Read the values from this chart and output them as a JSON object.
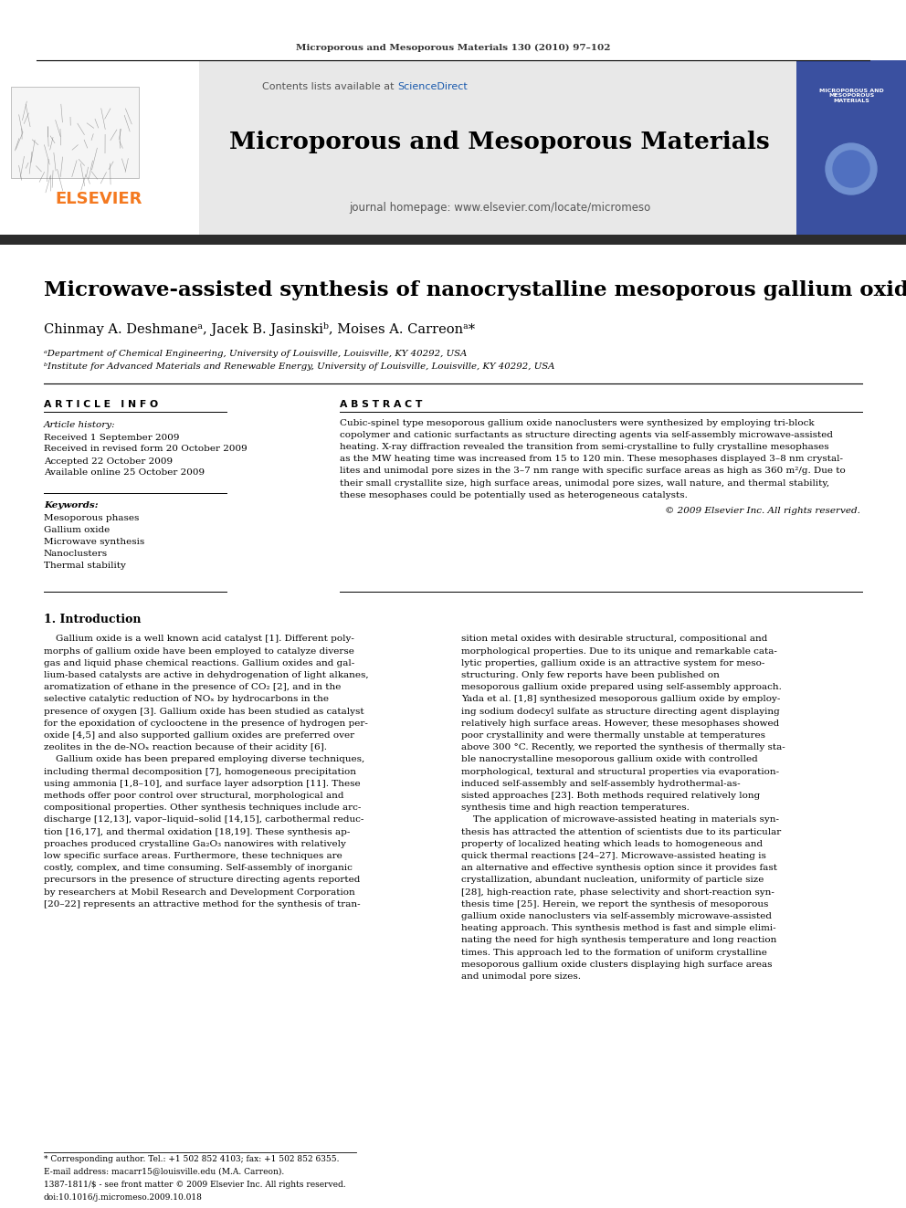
{
  "journal_header": "Microporous and Mesoporous Materials 130 (2010) 97–102",
  "journal_name": "Microporous and Mesoporous Materials",
  "journal_url": "journal homepage: www.elsevier.com/locate/micromeso",
  "paper_title": "Microwave-assisted synthesis of nanocrystalline mesoporous gallium oxide",
  "authors": "Chinmay A. Deshmaneᵃ, Jacek B. Jasinskiᵇ, Moises A. Carreonᵃ*",
  "affil_a": "ᵃDepartment of Chemical Engineering, University of Louisville, Louisville, KY 40292, USA",
  "affil_b": "ᵇInstitute for Advanced Materials and Renewable Energy, University of Louisville, Louisville, KY 40292, USA",
  "article_info_title": "A R T I C L E   I N F O",
  "abstract_title": "A B S T R A C T",
  "article_history_title": "Article history:",
  "received": "Received 1 September 2009",
  "revised": "Received in revised form 20 October 2009",
  "accepted": "Accepted 22 October 2009",
  "available": "Available online 25 October 2009",
  "keywords_title": "Keywords:",
  "keywords": [
    "Mesoporous phases",
    "Gallium oxide",
    "Microwave synthesis",
    "Nanoclusters",
    "Thermal stability"
  ],
  "copyright": "© 2009 Elsevier Inc. All rights reserved.",
  "intro_title": "1. Introduction",
  "footer_corresp": "* Corresponding author. Tel.: +1 502 852 4103; fax: +1 502 852 6355.",
  "footer_email": "E-mail address: macarr15@louisville.edu (M.A. Carreon).",
  "footer_issn": "1387-1811/$ - see front matter © 2009 Elsevier Inc. All rights reserved.",
  "footer_doi": "doi:10.1016/j.micromeso.2009.10.018",
  "header_bg": "#e8e8e8",
  "elsevier_orange": "#f47920",
  "sciencedirect_blue": "#1a5aad",
  "dark_bar_color": "#2c2c2c",
  "background_color": "#ffffff",
  "abstract_lines": [
    "Cubic-spinel type mesoporous gallium oxide nanoclusters were synthesized by employing tri-block",
    "copolymer and cationic surfactants as structure directing agents via self-assembly microwave-assisted",
    "heating. X-ray diffraction revealed the transition from semi-crystalline to fully crystalline mesophases",
    "as the MW heating time was increased from 15 to 120 min. These mesophases displayed 3–8 nm crystal-",
    "lites and unimodal pore sizes in the 3–7 nm range with specific surface areas as high as 360 m²/g. Due to",
    "their small crystallite size, high surface areas, unimodal pore sizes, wall nature, and thermal stability,",
    "these mesophases could be potentially used as heterogeneous catalysts."
  ],
  "col1_lines": [
    "    Gallium oxide is a well known acid catalyst [1]. Different poly-",
    "morphs of gallium oxide have been employed to catalyze diverse",
    "gas and liquid phase chemical reactions. Gallium oxides and gal-",
    "lium-based catalysts are active in dehydrogenation of light alkanes,",
    "aromatization of ethane in the presence of CO₂ [2], and in the",
    "selective catalytic reduction of NOₓ by hydrocarbons in the",
    "presence of oxygen [3]. Gallium oxide has been studied as catalyst",
    "for the epoxidation of cyclooctene in the presence of hydrogen per-",
    "oxide [4,5] and also supported gallium oxides are preferred over",
    "zeolites in the de-NOₓ reaction because of their acidity [6].",
    "    Gallium oxide has been prepared employing diverse techniques,",
    "including thermal decomposition [7], homogeneous precipitation",
    "using ammonia [1,8–10], and surface layer adsorption [11]. These",
    "methods offer poor control over structural, morphological and",
    "compositional properties. Other synthesis techniques include arc-",
    "discharge [12,13], vapor–liquid–solid [14,15], carbothermal reduc-",
    "tion [16,17], and thermal oxidation [18,19]. These synthesis ap-",
    "proaches produced crystalline Ga₂O₃ nanowires with relatively",
    "low specific surface areas. Furthermore, these techniques are",
    "costly, complex, and time consuming. Self-assembly of inorganic",
    "precursors in the presence of structure directing agents reported",
    "by researchers at Mobil Research and Development Corporation",
    "[20–22] represents an attractive method for the synthesis of tran-"
  ],
  "col2_lines": [
    "sition metal oxides with desirable structural, compositional and",
    "morphological properties. Due to its unique and remarkable cata-",
    "lytic properties, gallium oxide is an attractive system for meso-",
    "structuring. Only few reports have been published on",
    "mesoporous gallium oxide prepared using self-assembly approach.",
    "Yada et al. [1,8] synthesized mesoporous gallium oxide by employ-",
    "ing sodium dodecyl sulfate as structure directing agent displaying",
    "relatively high surface areas. However, these mesophases showed",
    "poor crystallinity and were thermally unstable at temperatures",
    "above 300 °C. Recently, we reported the synthesis of thermally sta-",
    "ble nanocrystalline mesoporous gallium oxide with controlled",
    "morphological, textural and structural properties via evaporation-",
    "induced self-assembly and self-assembly hydrothermal-as-",
    "sisted approaches [23]. Both methods required relatively long",
    "synthesis time and high reaction temperatures.",
    "    The application of microwave-assisted heating in materials syn-",
    "thesis has attracted the attention of scientists due to its particular",
    "property of localized heating which leads to homogeneous and",
    "quick thermal reactions [24–27]. Microwave-assisted heating is",
    "an alternative and effective synthesis option since it provides fast",
    "crystallization, abundant nucleation, uniformity of particle size",
    "[28], high-reaction rate, phase selectivity and short-reaction syn-",
    "thesis time [25]. Herein, we report the synthesis of mesoporous",
    "gallium oxide nanoclusters via self-assembly microwave-assisted",
    "heating approach. This synthesis method is fast and simple elimi-",
    "nating the need for high synthesis temperature and long reaction",
    "times. This approach led to the formation of uniform crystalline",
    "mesoporous gallium oxide clusters displaying high surface areas",
    "and unimodal pore sizes."
  ]
}
